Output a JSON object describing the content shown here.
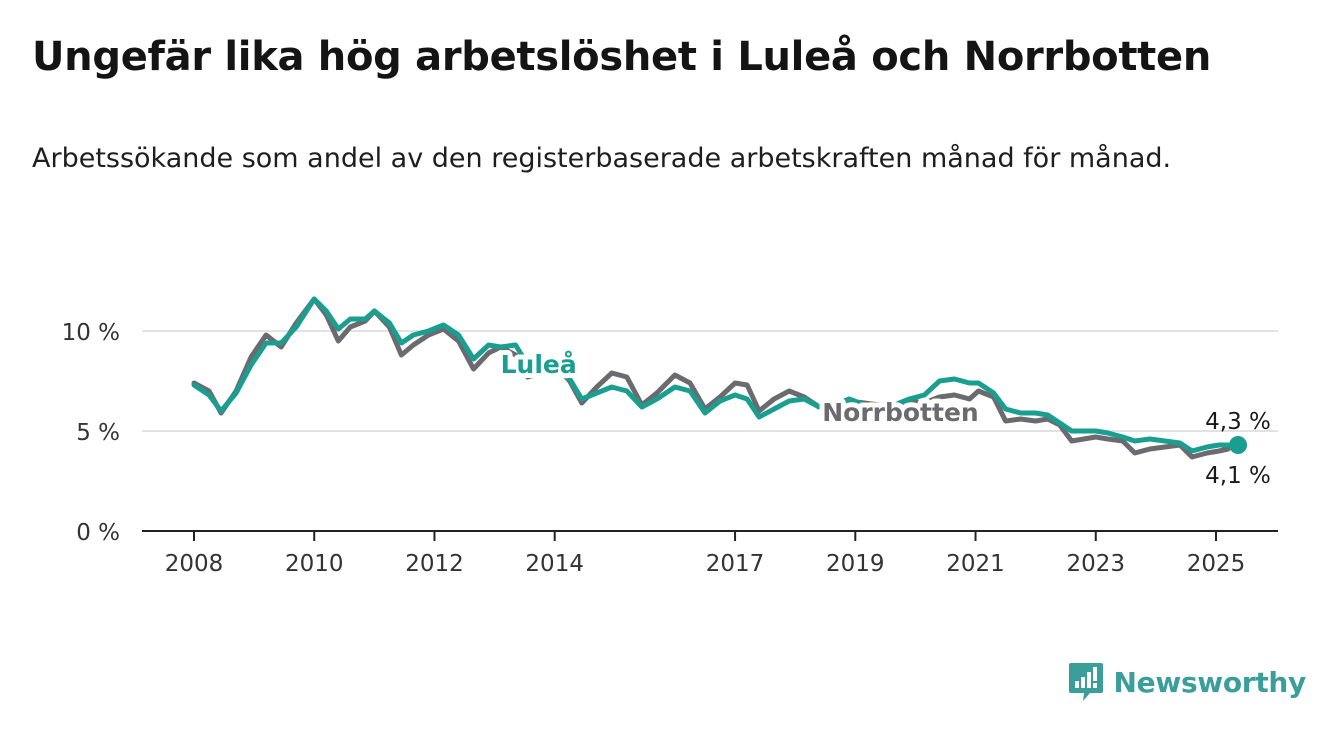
{
  "header": {
    "title": "Ungefär lika hög arbetslöshet i Luleå och Norrbotten",
    "subtitle": "Arbetssökande som andel av den registerbaserade arbetskraften månad för månad."
  },
  "brand": {
    "name": "Newsworthy",
    "logo_icon": "newsworthy-bar-chart-icon",
    "color": "#3a9e9a"
  },
  "colors": {
    "lulea": "#1a9e90",
    "norrbotten": "#6b6b6f",
    "grid": "#d8d8d8",
    "axis": "#222222"
  },
  "chart_data": {
    "type": "line",
    "x_unit": "year",
    "xlim": [
      2008,
      2026.0
    ],
    "ylim": [
      0,
      10
    ],
    "y_ticks": [
      {
        "value": 0,
        "label": "0 %"
      },
      {
        "value": 5,
        "label": "5 %"
      },
      {
        "value": 10,
        "label": "10 %"
      }
    ],
    "x_ticks": [
      {
        "value": 2008,
        "label": "2008"
      },
      {
        "value": 2010,
        "label": "2010"
      },
      {
        "value": 2012,
        "label": "2012"
      },
      {
        "value": 2014,
        "label": "2014"
      },
      {
        "value": 2017,
        "label": "2017"
      },
      {
        "value": 2019,
        "label": "2019"
      },
      {
        "value": 2021,
        "label": "2021"
      },
      {
        "value": 2023,
        "label": "2023"
      },
      {
        "value": 2025,
        "label": "2025"
      }
    ],
    "grid": "horizontal",
    "series": [
      {
        "name": "Norrbotten",
        "color": "#6b6b6f",
        "end_label": "4,1 %",
        "points": [
          [
            2008.0,
            7.4
          ],
          [
            2008.25,
            7.0
          ],
          [
            2008.45,
            5.9
          ],
          [
            2008.7,
            7.0
          ],
          [
            2008.95,
            8.7
          ],
          [
            2009.2,
            9.8
          ],
          [
            2009.45,
            9.2
          ],
          [
            2009.7,
            10.4
          ],
          [
            2010.0,
            11.6
          ],
          [
            2010.2,
            10.8
          ],
          [
            2010.4,
            9.5
          ],
          [
            2010.6,
            10.2
          ],
          [
            2010.85,
            10.5
          ],
          [
            2011.0,
            11.0
          ],
          [
            2011.25,
            10.2
          ],
          [
            2011.45,
            8.8
          ],
          [
            2011.65,
            9.3
          ],
          [
            2011.9,
            9.8
          ],
          [
            2012.15,
            10.1
          ],
          [
            2012.4,
            9.5
          ],
          [
            2012.65,
            8.1
          ],
          [
            2012.9,
            8.9
          ],
          [
            2013.1,
            9.2
          ],
          [
            2013.35,
            8.8
          ],
          [
            2013.55,
            7.7
          ],
          [
            2013.75,
            7.9
          ],
          [
            2014.0,
            8.3
          ],
          [
            2014.25,
            7.5
          ],
          [
            2014.45,
            6.4
          ],
          [
            2014.7,
            7.2
          ],
          [
            2014.95,
            7.9
          ],
          [
            2015.2,
            7.7
          ],
          [
            2015.45,
            6.3
          ],
          [
            2015.7,
            6.9
          ],
          [
            2016.0,
            7.8
          ],
          [
            2016.25,
            7.4
          ],
          [
            2016.5,
            6.1
          ],
          [
            2016.75,
            6.7
          ],
          [
            2017.0,
            7.4
          ],
          [
            2017.2,
            7.3
          ],
          [
            2017.4,
            6.0
          ],
          [
            2017.65,
            6.6
          ],
          [
            2017.9,
            7.0
          ],
          [
            2018.15,
            6.7
          ],
          [
            2018.4,
            6.2
          ],
          [
            2018.65,
            6.3
          ],
          [
            2018.9,
            6.5
          ],
          [
            2019.15,
            6.4
          ],
          [
            2019.4,
            6.3
          ],
          [
            2019.65,
            6.3
          ],
          [
            2019.9,
            6.5
          ],
          [
            2020.15,
            6.4
          ],
          [
            2020.4,
            6.7
          ],
          [
            2020.65,
            6.8
          ],
          [
            2020.9,
            6.6
          ],
          [
            2021.05,
            7.0
          ],
          [
            2021.3,
            6.7
          ],
          [
            2021.5,
            5.5
          ],
          [
            2021.75,
            5.6
          ],
          [
            2022.0,
            5.5
          ],
          [
            2022.2,
            5.6
          ],
          [
            2022.4,
            5.3
          ],
          [
            2022.6,
            4.5
          ],
          [
            2022.8,
            4.6
          ],
          [
            2023.0,
            4.7
          ],
          [
            2023.2,
            4.6
          ],
          [
            2023.45,
            4.5
          ],
          [
            2023.65,
            3.9
          ],
          [
            2023.9,
            4.1
          ],
          [
            2024.15,
            4.2
          ],
          [
            2024.4,
            4.3
          ],
          [
            2024.6,
            3.7
          ],
          [
            2024.85,
            3.9
          ],
          [
            2025.05,
            4.0
          ],
          [
            2025.2,
            4.1
          ]
        ]
      },
      {
        "name": "Luleå",
        "color": "#1a9e90",
        "end_label": "4,3 %",
        "points": [
          [
            2008.0,
            7.3
          ],
          [
            2008.25,
            6.8
          ],
          [
            2008.45,
            6.0
          ],
          [
            2008.7,
            6.9
          ],
          [
            2008.95,
            8.3
          ],
          [
            2009.2,
            9.4
          ],
          [
            2009.45,
            9.4
          ],
          [
            2009.7,
            10.2
          ],
          [
            2010.0,
            11.6
          ],
          [
            2010.2,
            11.0
          ],
          [
            2010.4,
            10.1
          ],
          [
            2010.6,
            10.6
          ],
          [
            2010.85,
            10.6
          ],
          [
            2011.0,
            11.0
          ],
          [
            2011.25,
            10.4
          ],
          [
            2011.45,
            9.4
          ],
          [
            2011.65,
            9.8
          ],
          [
            2011.9,
            10.0
          ],
          [
            2012.15,
            10.3
          ],
          [
            2012.4,
            9.8
          ],
          [
            2012.65,
            8.6
          ],
          [
            2012.9,
            9.3
          ],
          [
            2013.1,
            9.2
          ],
          [
            2013.35,
            9.3
          ],
          [
            2013.55,
            8.3
          ],
          [
            2013.75,
            8.0
          ],
          [
            2014.0,
            8.1
          ],
          [
            2014.25,
            7.6
          ],
          [
            2014.45,
            6.6
          ],
          [
            2014.7,
            6.9
          ],
          [
            2014.95,
            7.2
          ],
          [
            2015.2,
            7.0
          ],
          [
            2015.45,
            6.2
          ],
          [
            2015.7,
            6.6
          ],
          [
            2016.0,
            7.2
          ],
          [
            2016.25,
            7.0
          ],
          [
            2016.5,
            5.9
          ],
          [
            2016.75,
            6.5
          ],
          [
            2017.0,
            6.8
          ],
          [
            2017.2,
            6.6
          ],
          [
            2017.4,
            5.7
          ],
          [
            2017.65,
            6.1
          ],
          [
            2017.9,
            6.5
          ],
          [
            2018.15,
            6.6
          ],
          [
            2018.4,
            6.2
          ],
          [
            2018.65,
            6.3
          ],
          [
            2018.9,
            6.6
          ],
          [
            2019.15,
            6.3
          ],
          [
            2019.4,
            6.1
          ],
          [
            2019.65,
            6.3
          ],
          [
            2019.9,
            6.6
          ],
          [
            2020.15,
            6.8
          ],
          [
            2020.4,
            7.5
          ],
          [
            2020.65,
            7.6
          ],
          [
            2020.9,
            7.4
          ],
          [
            2021.05,
            7.4
          ],
          [
            2021.3,
            6.9
          ],
          [
            2021.5,
            6.1
          ],
          [
            2021.75,
            5.9
          ],
          [
            2022.0,
            5.9
          ],
          [
            2022.2,
            5.8
          ],
          [
            2022.4,
            5.4
          ],
          [
            2022.6,
            5.0
          ],
          [
            2022.8,
            5.0
          ],
          [
            2023.0,
            5.0
          ],
          [
            2023.2,
            4.9
          ],
          [
            2023.45,
            4.7
          ],
          [
            2023.65,
            4.5
          ],
          [
            2023.9,
            4.6
          ],
          [
            2024.15,
            4.5
          ],
          [
            2024.4,
            4.4
          ],
          [
            2024.6,
            4.0
          ],
          [
            2024.85,
            4.2
          ],
          [
            2025.05,
            4.3
          ],
          [
            2025.2,
            4.3
          ]
        ]
      }
    ],
    "annotations": [
      {
        "text": "Luleå",
        "series": "Luleå"
      },
      {
        "text": "Norrbotten",
        "series": "Norrbotten"
      }
    ]
  }
}
